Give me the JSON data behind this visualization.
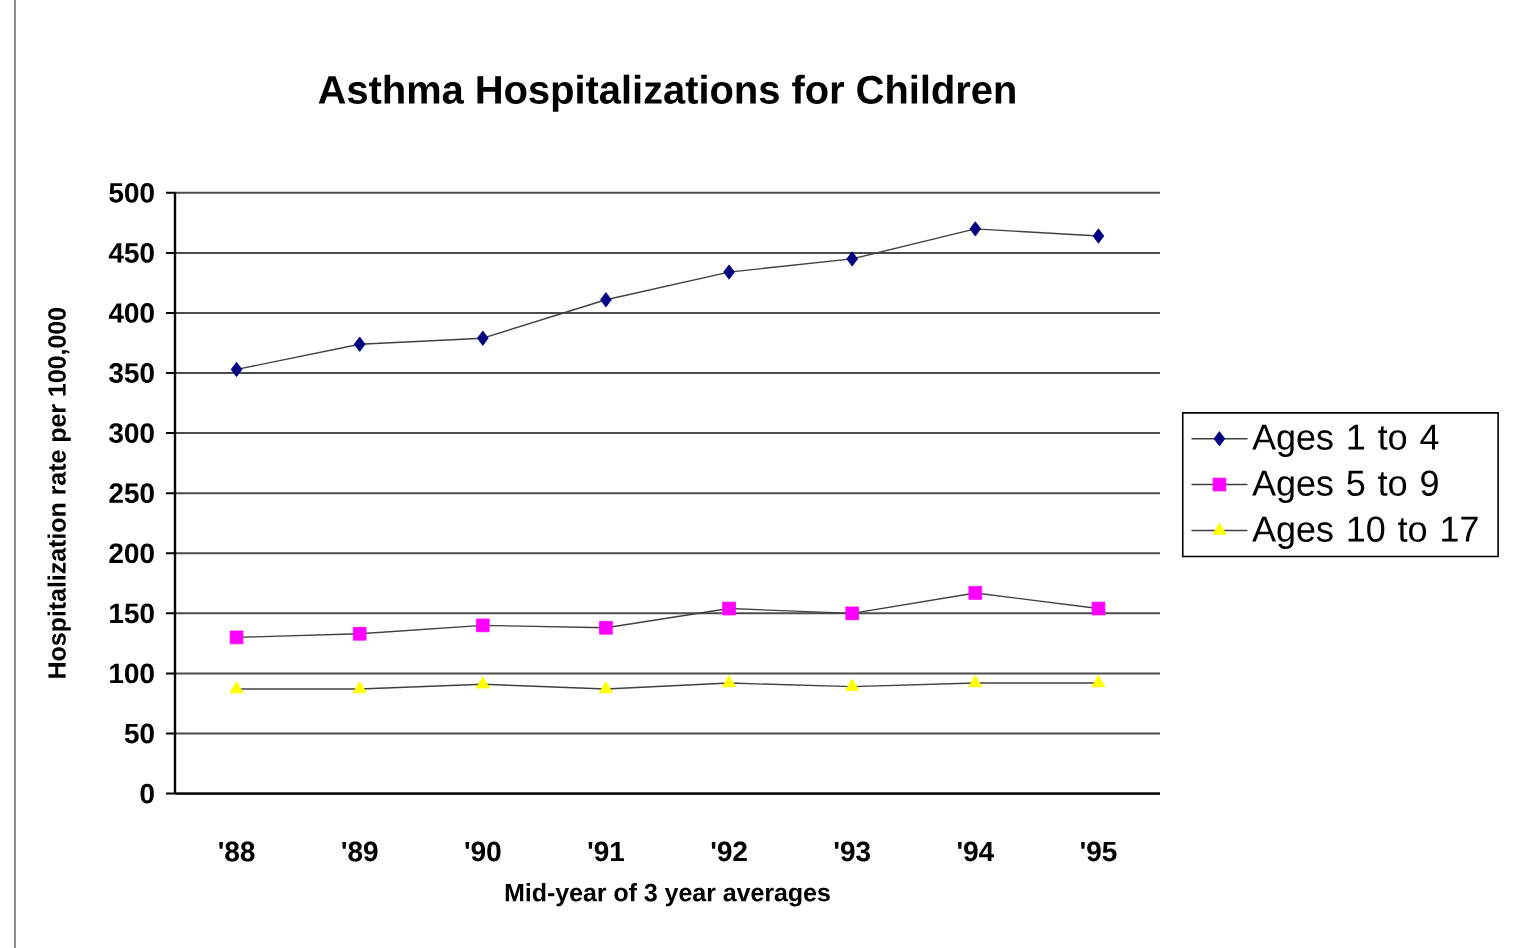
{
  "chart_data": {
    "type": "line",
    "title": "Asthma Hospitalizations for Children",
    "xlabel": "Mid-year of 3 year averages",
    "ylabel": "Hospitalization rate per 100,000",
    "categories": [
      "'88",
      "'89",
      "'90",
      "'91",
      "'92",
      "'93",
      "'94",
      "'95"
    ],
    "series": [
      {
        "name": "Ages 1 to 4",
        "color": "#000080",
        "marker": "diamond",
        "values": [
          353,
          374,
          379,
          411,
          434,
          445,
          470,
          464
        ]
      },
      {
        "name": "Ages 5 to 9",
        "color": "#ff00ff",
        "marker": "square",
        "values": [
          130,
          133,
          140,
          138,
          154,
          150,
          167,
          154
        ]
      },
      {
        "name": "Ages 10 to 17",
        "color": "#ffff00",
        "marker": "triangle",
        "values": [
          87,
          87,
          91,
          87,
          92,
          89,
          92,
          92
        ]
      }
    ],
    "ylim": [
      0,
      500
    ],
    "yticks": [
      0,
      50,
      100,
      150,
      200,
      250,
      300,
      350,
      400,
      450,
      500
    ],
    "grid": "y",
    "legend": "right"
  }
}
